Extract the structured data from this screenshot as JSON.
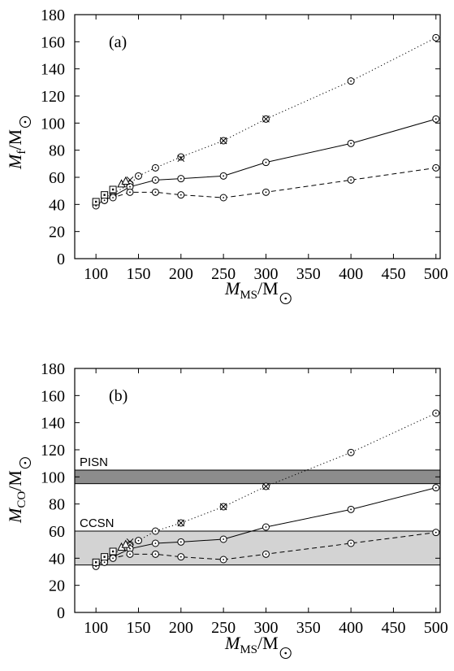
{
  "chart_data": [
    {
      "type": "line",
      "panel_label": "(a)",
      "xlabel": {
        "main": "M",
        "sub": "MS",
        "unit": "/M"
      },
      "ylabel": {
        "main": "M",
        "sub": "f",
        "unit": "/M"
      },
      "xlim": [
        75,
        505
      ],
      "ylim": [
        0,
        180
      ],
      "xticks": [
        100,
        150,
        200,
        250,
        300,
        350,
        400,
        450,
        500
      ],
      "yticks": [
        0,
        20,
        40,
        60,
        80,
        100,
        120,
        140,
        160,
        180
      ],
      "grid": false,
      "bands": [],
      "series": [
        {
          "style": "dotted",
          "marker": "circle",
          "x": [
            100,
            110,
            120,
            140,
            150,
            170,
            200,
            250,
            300,
            400,
            500
          ],
          "y": [
            41,
            45,
            48,
            55,
            61,
            67,
            75,
            87,
            103,
            131,
            163
          ]
        },
        {
          "style": "solid",
          "marker": "circle",
          "x": [
            100,
            110,
            120,
            140,
            170,
            200,
            250,
            300,
            400,
            500
          ],
          "y": [
            40,
            43,
            46,
            53,
            58,
            59,
            61,
            71,
            85,
            103
          ]
        },
        {
          "style": "dashed",
          "marker": "circle",
          "x": [
            100,
            110,
            120,
            140,
            170,
            200,
            250,
            300,
            400,
            500
          ],
          "y": [
            39,
            43,
            45,
            49,
            49,
            47,
            45,
            49,
            58,
            67
          ]
        },
        {
          "style": "none",
          "marker": "x",
          "x": [
            140,
            200,
            250,
            300
          ],
          "y": [
            58,
            74,
            87,
            103
          ]
        },
        {
          "style": "none",
          "marker": "square",
          "x": [
            100,
            110,
            120
          ],
          "y": [
            42,
            47,
            51
          ]
        },
        {
          "style": "none",
          "marker": "triangle",
          "x": [
            130,
            135
          ],
          "y": [
            55,
            57
          ]
        }
      ]
    },
    {
      "type": "line",
      "panel_label": "(b)",
      "xlabel": {
        "main": "M",
        "sub": "MS",
        "unit": "/M"
      },
      "ylabel": {
        "main": "M",
        "sub": "CO",
        "unit": "/M"
      },
      "xlim": [
        75,
        505
      ],
      "ylim": [
        0,
        180
      ],
      "xticks": [
        100,
        150,
        200,
        250,
        300,
        350,
        400,
        450,
        500
      ],
      "yticks": [
        0,
        20,
        40,
        60,
        80,
        100,
        120,
        140,
        160,
        180
      ],
      "grid": false,
      "bands": [
        {
          "label": "PISN",
          "y0": 95,
          "y1": 105,
          "color": "#8c8c8c"
        },
        {
          "label": "CCSN",
          "y0": 35,
          "y1": 60,
          "color": "#d3d3d3"
        }
      ],
      "series": [
        {
          "style": "dotted",
          "marker": "circle",
          "x": [
            100,
            110,
            120,
            140,
            150,
            170,
            200,
            250,
            300,
            400,
            500
          ],
          "y": [
            36,
            40,
            43,
            50,
            53,
            60,
            66,
            78,
            93,
            118,
            147
          ]
        },
        {
          "style": "solid",
          "marker": "circle",
          "x": [
            100,
            110,
            120,
            140,
            170,
            200,
            250,
            300,
            400,
            500
          ],
          "y": [
            35,
            38,
            41,
            47,
            51,
            52,
            54,
            63,
            76,
            92
          ]
        },
        {
          "style": "dashed",
          "marker": "circle",
          "x": [
            100,
            110,
            120,
            140,
            170,
            200,
            250,
            300,
            400,
            500
          ],
          "y": [
            34,
            37,
            40,
            43,
            43,
            41,
            39,
            43,
            51,
            59
          ]
        },
        {
          "style": "none",
          "marker": "x",
          "x": [
            140,
            200,
            250,
            300
          ],
          "y": [
            52,
            66,
            78,
            93
          ]
        },
        {
          "style": "none",
          "marker": "square",
          "x": [
            100,
            110,
            120
          ],
          "y": [
            37,
            41,
            45
          ]
        },
        {
          "style": "none",
          "marker": "triangle",
          "x": [
            130,
            135
          ],
          "y": [
            48,
            50
          ]
        }
      ]
    }
  ]
}
